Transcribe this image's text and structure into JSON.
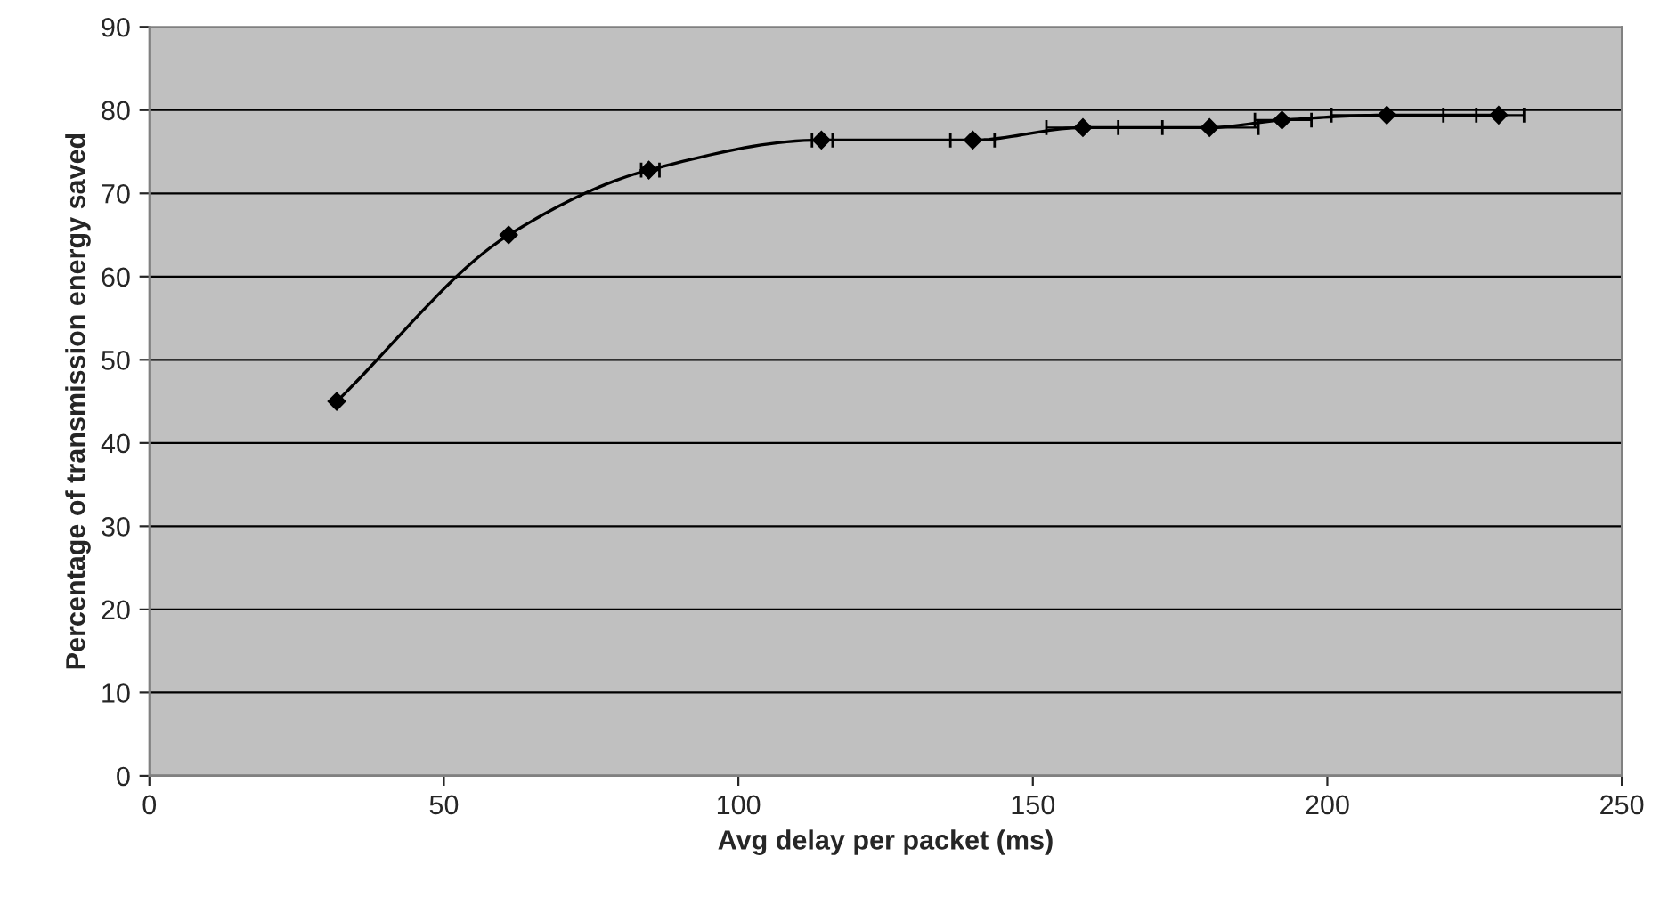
{
  "chart_data": {
    "type": "line",
    "xlabel": "Avg delay per packet (ms)",
    "ylabel": "Percentage of transmission energy saved",
    "x": [
      31.8,
      61,
      84.8,
      114.1,
      139.8,
      158.5,
      180,
      192.3,
      210.1,
      229.1
    ],
    "series": [
      {
        "color": "#000000",
        "values": [
          45,
          65,
          72.8,
          76.4,
          76.4,
          77.9,
          77.9,
          78.8,
          79.4,
          79.4
        ],
        "xerrors": [
          null,
          null,
          [
            83.5,
            86.6
          ],
          [
            112.5,
            116
          ],
          [
            136,
            143.5
          ],
          [
            152.3,
            164.5
          ],
          [
            172,
            188.3
          ],
          [
            187.7,
            197.3
          ],
          [
            200.7,
            219.7
          ],
          [
            225.3,
            233.4
          ]
        ]
      }
    ],
    "xlim": [
      0,
      250
    ],
    "xticks": [
      0,
      50,
      100,
      150,
      200,
      250
    ],
    "ylim": [
      0,
      90
    ],
    "yticks": [
      0,
      10,
      20,
      30,
      40,
      50,
      60,
      70,
      80,
      90
    ],
    "grid": "y",
    "marker": "diamond",
    "line_style": "solid",
    "legend": false
  }
}
